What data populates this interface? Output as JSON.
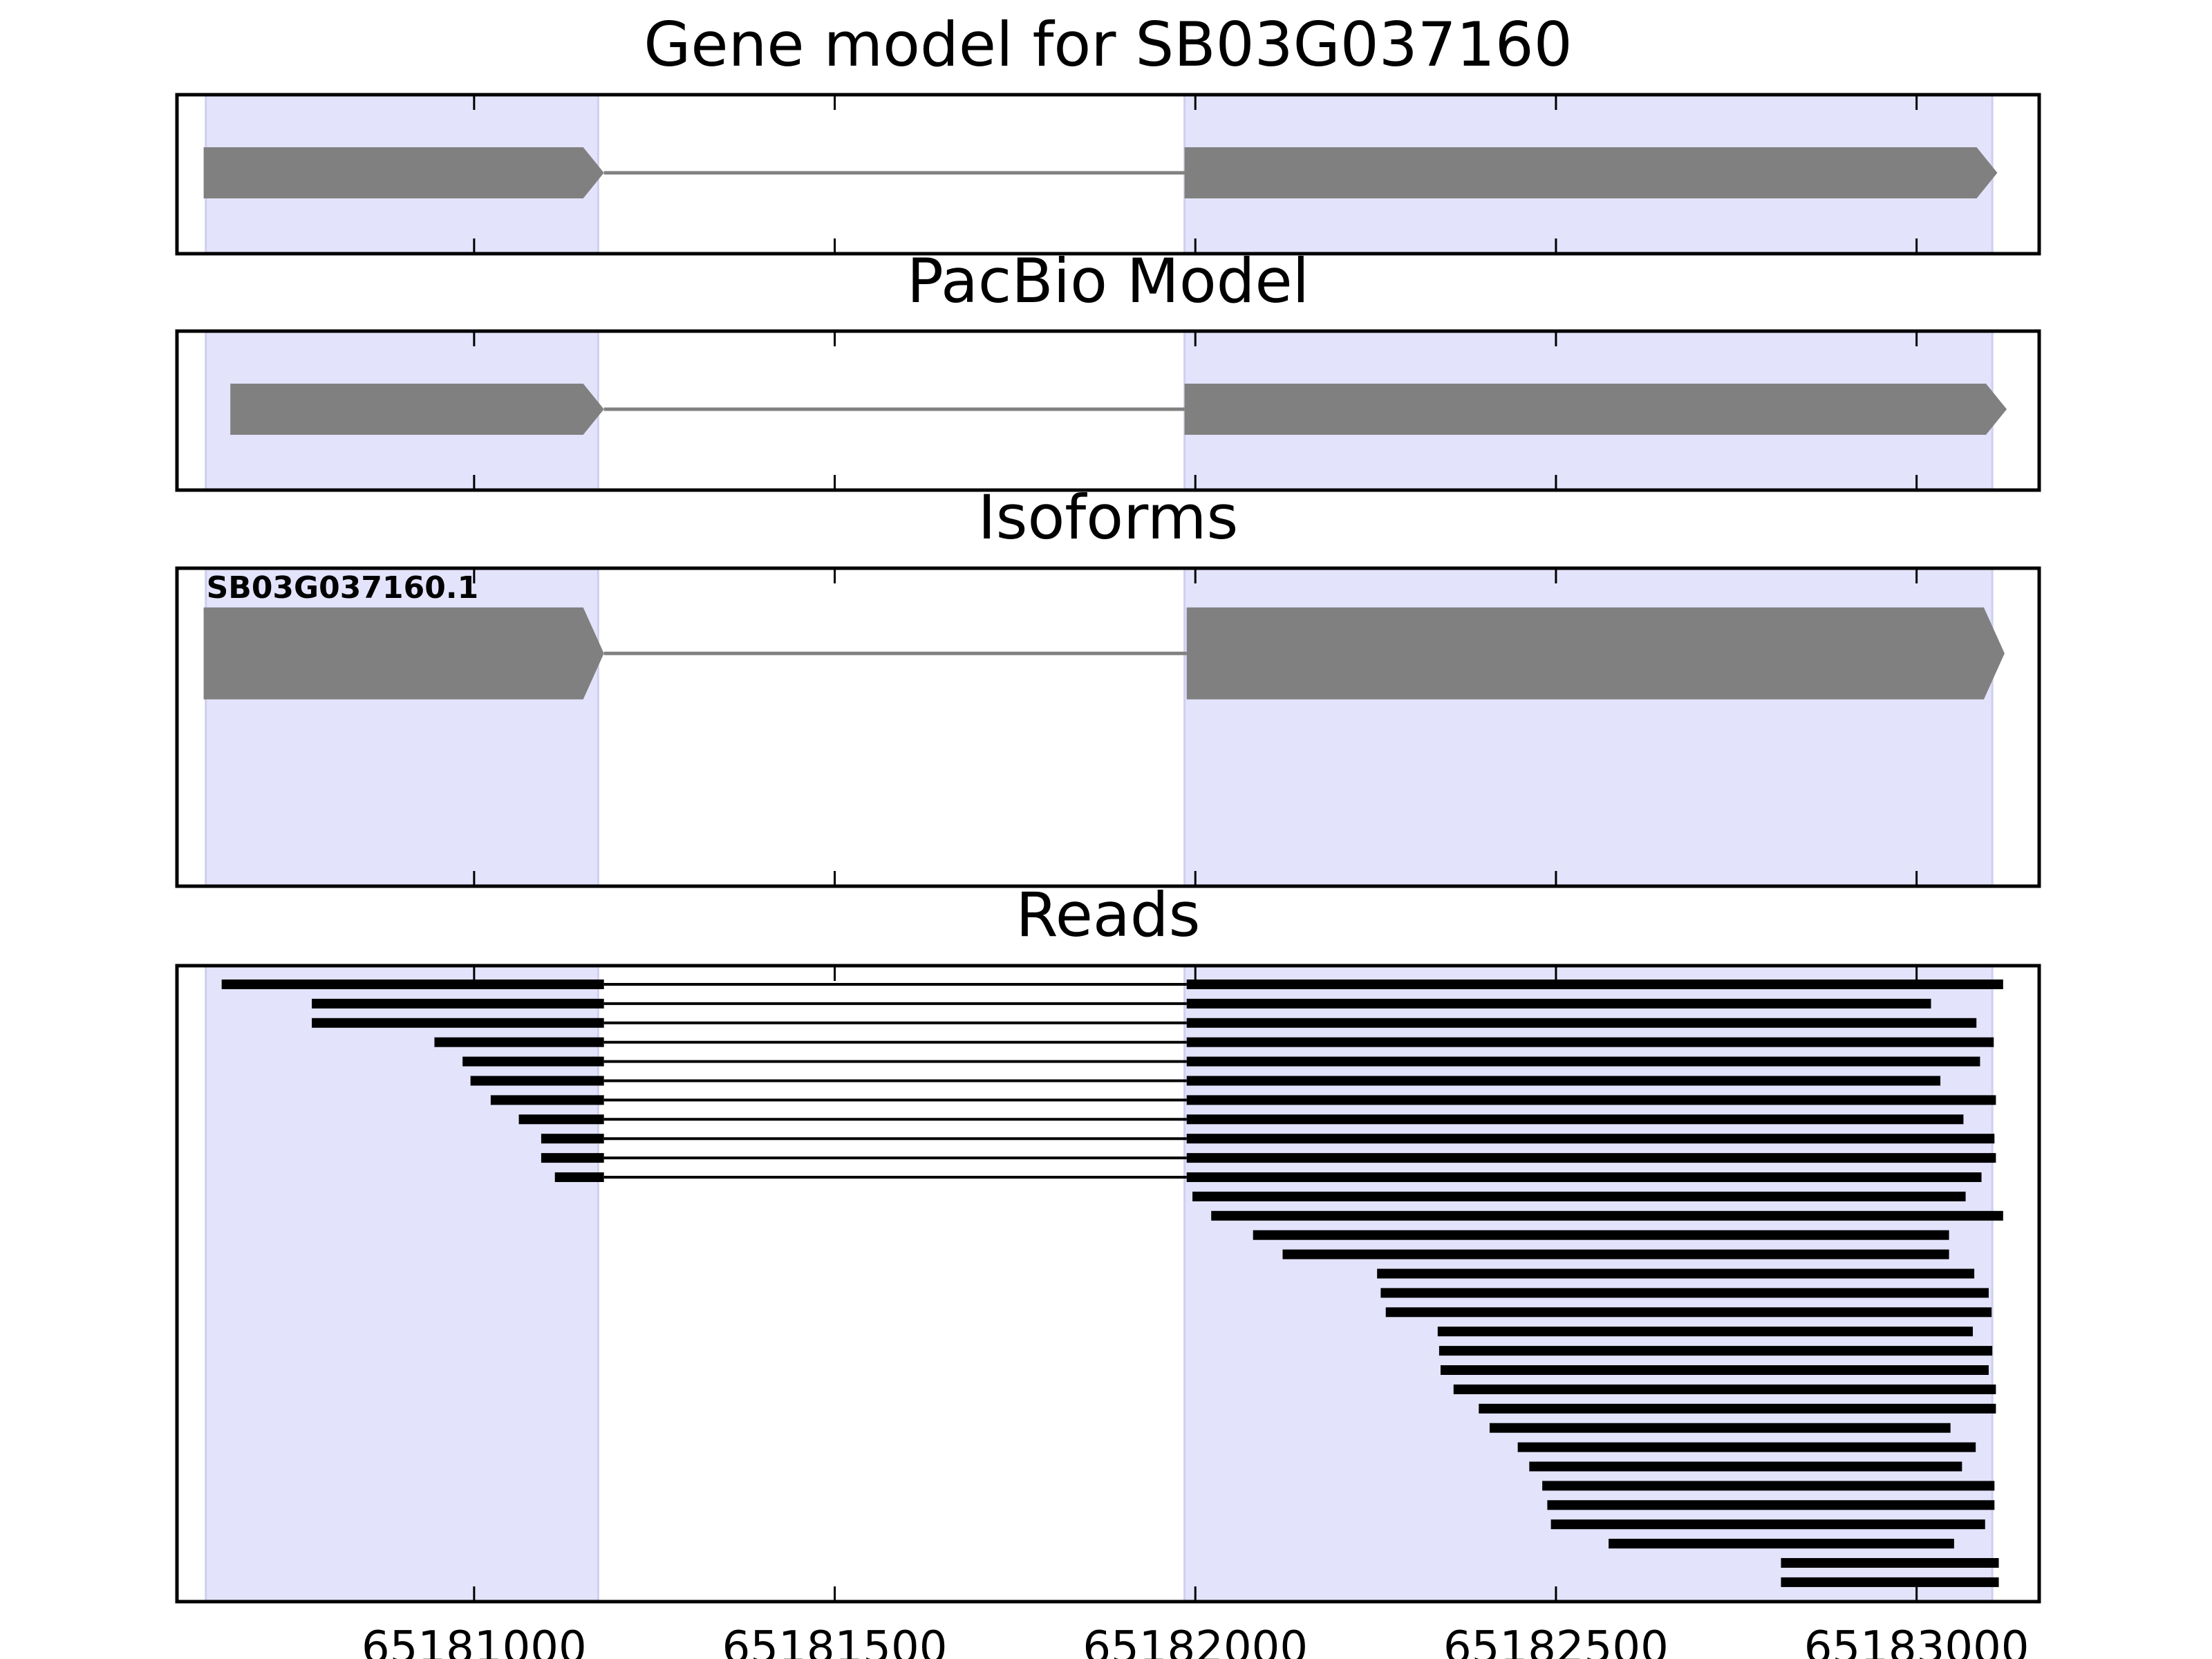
{
  "chart_data": {
    "type": "gene-track",
    "xlim": [
      65180588,
      65183170
    ],
    "xticks": [
      65181000,
      65181500,
      65182000,
      65182500,
      65183000
    ],
    "xtick_labels": [
      "65181000",
      "65181500",
      "65182000",
      "65182500",
      "65183000"
    ],
    "colors": {
      "exon_region": "#e3e3fc",
      "exon_region_edge": "#cfcfee",
      "feature": "#808080",
      "intron": "#808080",
      "read": "#000000",
      "frame": "#000000"
    },
    "exon_regions": [
      [
        65180628,
        65181172
      ],
      [
        65181985,
        65183105
      ]
    ],
    "panels": [
      {
        "title": "Gene model for SB03G037160",
        "kind": "model",
        "models": [
          {
            "label": "",
            "exons": [
              [
                65180625,
                65181180
              ],
              [
                65181985,
                65183112
              ]
            ]
          }
        ]
      },
      {
        "title": "PacBio Model",
        "kind": "model",
        "models": [
          {
            "label": "",
            "exons": [
              [
                65180662,
                65181180
              ],
              [
                65181985,
                65183125
              ]
            ]
          }
        ]
      },
      {
        "title": "Isoforms",
        "kind": "model",
        "models": [
          {
            "label": "SB03G037160.1",
            "exons": [
              [
                65180625,
                65181180
              ],
              [
                65181988,
                65183122
              ]
            ]
          }
        ]
      },
      {
        "title": "Reads",
        "kind": "reads",
        "reads": [
          [
            [
              65180650,
              65181180
            ],
            [
              65181988,
              65183120
            ]
          ],
          [
            [
              65180775,
              65181180
            ],
            [
              65181988,
              65183020
            ]
          ],
          [
            [
              65180775,
              65181180
            ],
            [
              65181988,
              65183083
            ]
          ],
          [
            [
              65180945,
              65181180
            ],
            [
              65181988,
              65183107
            ]
          ],
          [
            [
              65180984,
              65181180
            ],
            [
              65181988,
              65183088
            ]
          ],
          [
            [
              65180995,
              65181180
            ],
            [
              65181988,
              65183033
            ]
          ],
          [
            [
              65181023,
              65181180
            ],
            [
              65181988,
              65183110
            ]
          ],
          [
            [
              65181062,
              65181180
            ],
            [
              65181988,
              65183065
            ]
          ],
          [
            [
              65181093,
              65181180
            ],
            [
              65181988,
              65183108
            ]
          ],
          [
            [
              65181093,
              65181180
            ],
            [
              65181988,
              65183110
            ]
          ],
          [
            [
              65181112,
              65181180
            ],
            [
              65181988,
              65183090
            ]
          ],
          [
            [
              65181996,
              65183068
            ]
          ],
          [
            [
              65182022,
              65183120
            ]
          ],
          [
            [
              65182080,
              65183045
            ]
          ],
          [
            [
              65182121,
              65183045
            ]
          ],
          [
            [
              65182252,
              65183080
            ]
          ],
          [
            [
              65182257,
              65183100
            ]
          ],
          [
            [
              65182264,
              65183104
            ]
          ],
          [
            [
              65182336,
              65183078
            ]
          ],
          [
            [
              65182338,
              65183105
            ]
          ],
          [
            [
              65182340,
              65183100
            ]
          ],
          [
            [
              65182358,
              65183110
            ]
          ],
          [
            [
              65182393,
              65183110
            ]
          ],
          [
            [
              65182408,
              65183047
            ]
          ],
          [
            [
              65182447,
              65183082
            ]
          ],
          [
            [
              65182463,
              65183063
            ]
          ],
          [
            [
              65182481,
              65183108
            ]
          ],
          [
            [
              65182488,
              65183108
            ]
          ],
          [
            [
              65182493,
              65183095
            ]
          ],
          [
            [
              65182573,
              65183052
            ]
          ],
          [
            [
              65182812,
              65183114
            ]
          ],
          [
            [
              65182812,
              65183114
            ]
          ]
        ]
      }
    ]
  }
}
